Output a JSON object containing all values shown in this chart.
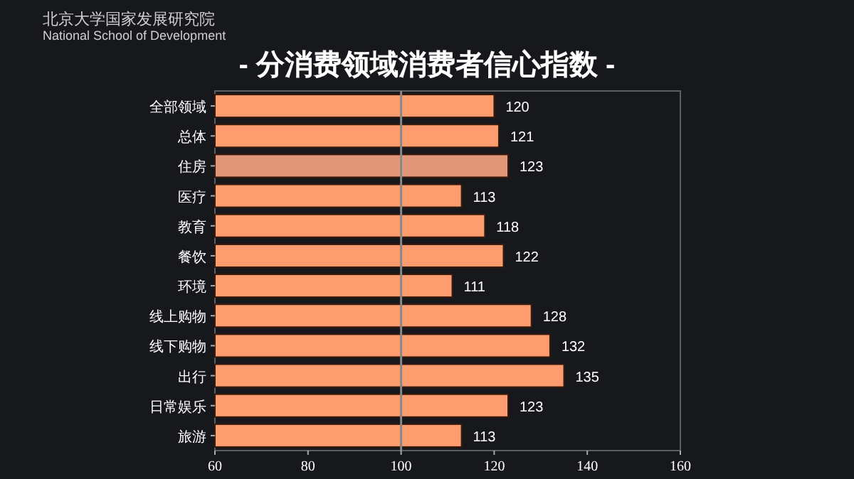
{
  "chart_data": {
    "type": "bar",
    "orientation": "horizontal",
    "title": "- 分消费领域消费者信心指数 -",
    "categories": [
      "全部领域",
      "总体",
      "住房",
      "医疗",
      "教育",
      "餐饮",
      "环境",
      "线上购物",
      "线下购物",
      "出行",
      "日常娱乐",
      "旅游"
    ],
    "values": [
      120,
      121,
      123,
      113,
      118,
      122,
      111,
      128,
      132,
      135,
      123,
      113
    ],
    "colors": [
      "#fd9d6f",
      "#fd9d6f",
      "#e1987a",
      "#fd9d6f",
      "#fd9d6f",
      "#fd9d6f",
      "#fd9d6f",
      "#fd9d6f",
      "#fd9d6f",
      "#fd9d6f",
      "#fd9d6f",
      "#fd9d6f"
    ],
    "xlim": [
      60,
      160
    ],
    "xticks": [
      60,
      80,
      100,
      120,
      140,
      160
    ],
    "ref_lines": [
      {
        "axis": "x",
        "value": 100,
        "color": "#888888"
      }
    ],
    "data_labels": true,
    "annotations": [
      "北京大学国家发展研究院",
      "National School of Development"
    ]
  }
}
